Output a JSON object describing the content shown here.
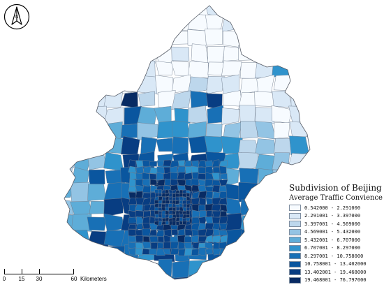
{
  "map": {
    "north_arrow_letter": "N",
    "legend": {
      "title": "Subdivision of Beijing",
      "subtitle": "Average Traffic Convience",
      "classes": [
        {
          "label": "0.542000 - 2.291000",
          "color": "#f7fbff"
        },
        {
          "label": "2.291001 - 3.397000",
          "color": "#d9e8f6"
        },
        {
          "label": "3.397001 - 4.569000",
          "color": "#bdd7ec"
        },
        {
          "label": "4.569001 - 5.432000",
          "color": "#93c4e4"
        },
        {
          "label": "5.432001 - 6.707000",
          "color": "#5eadd8"
        },
        {
          "label": "6.707001 - 8.297000",
          "color": "#2f93cc"
        },
        {
          "label": "8.297001 - 10.758000",
          "color": "#1870b6"
        },
        {
          "label": "10.758001 - 13.402000",
          "color": "#0a569f"
        },
        {
          "label": "13.402001 - 19.468000",
          "color": "#083d82"
        },
        {
          "label": "19.468001 - 76.797000",
          "color": "#082b63"
        }
      ]
    },
    "scale_bar": {
      "ticks": [
        "0",
        "15",
        "30",
        "60"
      ],
      "unit": "Kilometers"
    }
  }
}
